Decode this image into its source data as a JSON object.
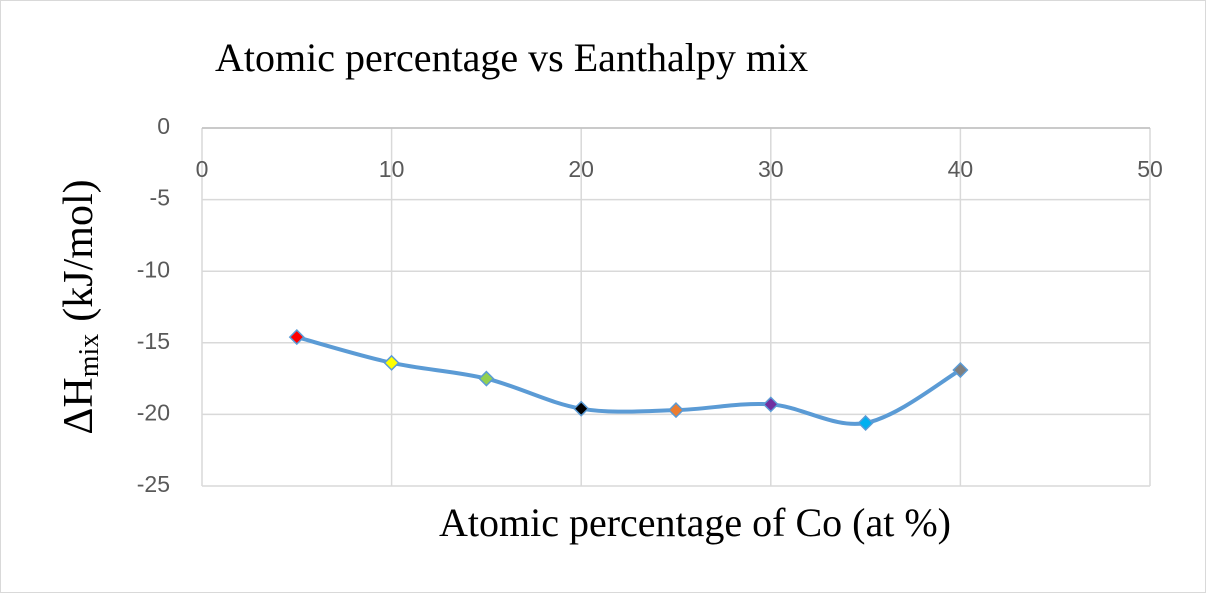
{
  "chart_data": {
    "type": "line",
    "title": "Atomic percentage vs Eanthalpy mix",
    "xlabel": "Atomic percentage of Co (at %)",
    "ylabel": [
      "ΔH",
      "mix",
      "(kJ/mol)"
    ],
    "x": [
      5,
      10,
      15,
      20,
      25,
      30,
      35,
      40
    ],
    "series": [
      {
        "color": "#5b9bd5",
        "values": [
          -14.6,
          -16.4,
          -17.5,
          -19.6,
          -19.7,
          -19.3,
          -20.6,
          -16.9
        ],
        "marker_colors": [
          "#ff0000",
          "#ffff00",
          "#92d050",
          "#000000",
          "#ed7d31",
          "#7030a0",
          "#00b0f0",
          "#7f7f7f"
        ]
      }
    ],
    "xlim": [
      0,
      50
    ],
    "ylim": [
      -25,
      0
    ],
    "xticks": [
      0,
      10,
      20,
      30,
      40,
      50
    ],
    "yticks": [
      0,
      -5,
      -10,
      -15,
      -20,
      -25
    ],
    "grid": true
  }
}
